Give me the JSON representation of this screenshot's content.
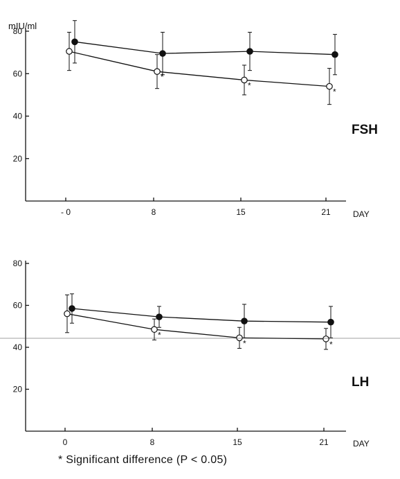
{
  "chart_data": [
    {
      "type": "line",
      "title": "FSH",
      "ylabel": "mIU/ml",
      "xlabel": "DAY",
      "x_tick_labels": [
        "- 0",
        "8",
        "15",
        "21"
      ],
      "x": [
        0,
        8,
        15,
        21
      ],
      "ylim": [
        0,
        80
      ],
      "y_ticks": [
        20,
        40,
        60,
        80
      ],
      "series": [
        {
          "marker": "filled-circle",
          "values": [
            75,
            69.5,
            70.5,
            69
          ],
          "error": [
            10,
            10,
            9,
            9.5
          ],
          "significant": [
            false,
            false,
            false,
            false
          ]
        },
        {
          "marker": "open-circle",
          "values": [
            70.5,
            61,
            57,
            54
          ],
          "error": [
            9,
            8,
            7,
            8.5
          ],
          "significant": [
            false,
            true,
            true,
            true
          ]
        }
      ]
    },
    {
      "type": "line",
      "title": "LH",
      "xlabel": "DAY",
      "x_tick_labels": [
        "0",
        "8",
        "15",
        "21"
      ],
      "x": [
        0,
        8,
        15,
        21
      ],
      "ylim": [
        0,
        80
      ],
      "y_ticks": [
        20,
        40,
        60,
        80
      ],
      "series": [
        {
          "marker": "filled-circle",
          "values": [
            58.5,
            54.5,
            52.5,
            52
          ],
          "error": [
            7,
            5,
            8,
            7.5
          ],
          "significant": [
            false,
            false,
            false,
            false
          ]
        },
        {
          "marker": "open-circle",
          "values": [
            56,
            48.5,
            44.5,
            44
          ],
          "error": [
            9,
            5,
            5,
            5
          ],
          "significant": [
            false,
            true,
            true,
            true
          ]
        }
      ]
    }
  ],
  "footnote": "* Significant difference  (P < 0.05)",
  "colors": {
    "ink": "#111111",
    "paper": "#ffffff"
  }
}
